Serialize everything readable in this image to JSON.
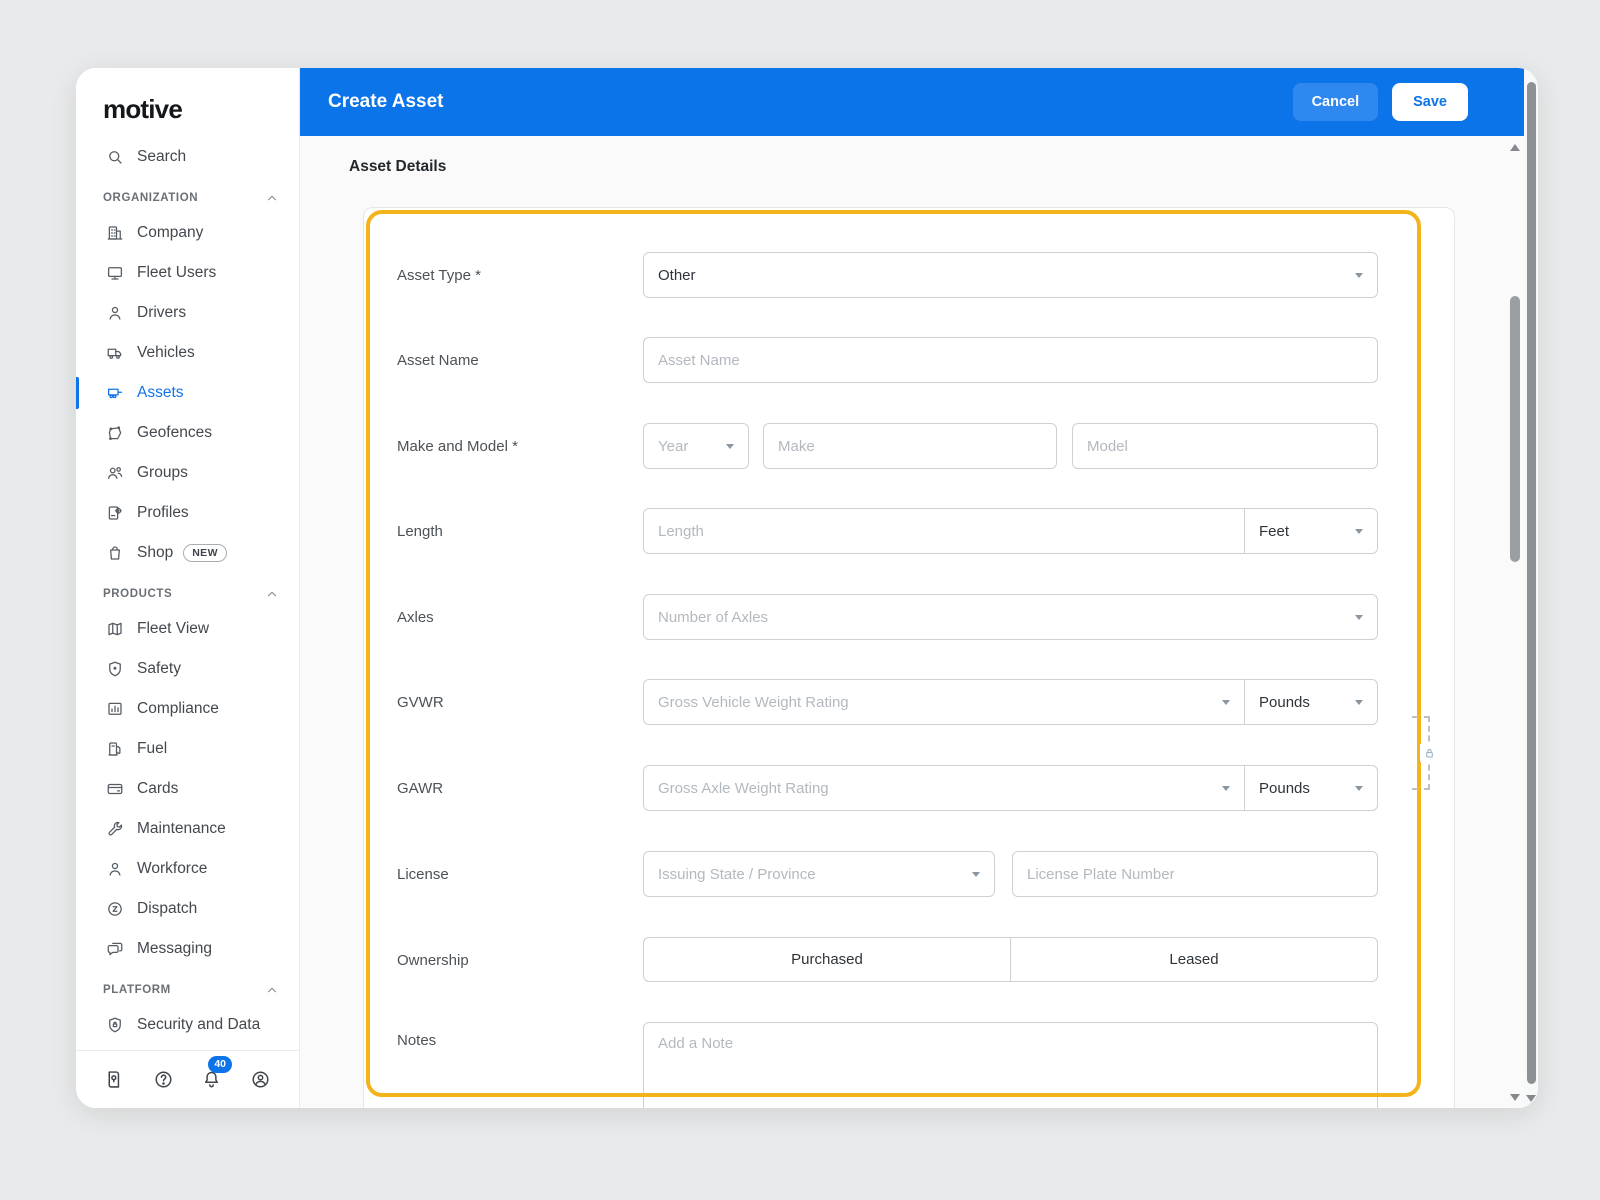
{
  "brand": {
    "logo_text": "motive"
  },
  "header": {
    "title": "Create Asset",
    "cancel_label": "Cancel",
    "save_label": "Save"
  },
  "sidebar": {
    "search_label": "Search",
    "sections": [
      {
        "label": "ORGANIZATION",
        "items": [
          {
            "label": "Company",
            "icon": "company"
          },
          {
            "label": "Fleet Users",
            "icon": "fleet-users"
          },
          {
            "label": "Drivers",
            "icon": "drivers"
          },
          {
            "label": "Vehicles",
            "icon": "vehicles"
          },
          {
            "label": "Assets",
            "icon": "assets",
            "selected": true
          },
          {
            "label": "Geofences",
            "icon": "geofences"
          },
          {
            "label": "Groups",
            "icon": "groups"
          },
          {
            "label": "Profiles",
            "icon": "profiles"
          },
          {
            "label": "Shop",
            "icon": "shop",
            "badge": "NEW"
          }
        ]
      },
      {
        "label": "PRODUCTS",
        "items": [
          {
            "label": "Fleet View",
            "icon": "fleet-view"
          },
          {
            "label": "Safety",
            "icon": "safety"
          },
          {
            "label": "Compliance",
            "icon": "compliance"
          },
          {
            "label": "Fuel",
            "icon": "fuel"
          },
          {
            "label": "Cards",
            "icon": "cards"
          },
          {
            "label": "Maintenance",
            "icon": "maintenance"
          },
          {
            "label": "Workforce",
            "icon": "workforce"
          },
          {
            "label": "Dispatch",
            "icon": "dispatch"
          },
          {
            "label": "Messaging",
            "icon": "messaging"
          }
        ]
      },
      {
        "label": "PLATFORM",
        "items": [
          {
            "label": "Security and Data",
            "icon": "security"
          }
        ]
      }
    ],
    "footer": {
      "notification_count": "40"
    }
  },
  "main": {
    "section_title": "Asset Details",
    "form": {
      "asset_type": {
        "label": "Asset Type *",
        "value": "Other"
      },
      "asset_name": {
        "label": "Asset Name",
        "placeholder": "Asset Name"
      },
      "make_model": {
        "label": "Make and Model *",
        "year_placeholder": "Year",
        "make_placeholder": "Make",
        "model_placeholder": "Model"
      },
      "length": {
        "label": "Length",
        "placeholder": "Length",
        "unit": "Feet"
      },
      "axles": {
        "label": "Axles",
        "placeholder": "Number of Axles"
      },
      "gvwr": {
        "label": "GVWR",
        "placeholder": "Gross Vehicle Weight Rating",
        "unit": "Pounds"
      },
      "gawr": {
        "label": "GAWR",
        "placeholder": "Gross Axle Weight Rating",
        "unit": "Pounds"
      },
      "license": {
        "label": "License",
        "state_placeholder": "Issuing State / Province",
        "plate_placeholder": "License Plate Number"
      },
      "ownership": {
        "label": "Ownership",
        "options": [
          "Purchased",
          "Leased"
        ]
      },
      "notes": {
        "label": "Notes",
        "placeholder": "Add a Note"
      }
    }
  },
  "colors": {
    "brand_blue": "#0b74e8",
    "cancel_blue": "#2f87f0",
    "highlight_yellow": "#f3b31a",
    "notification_badge_blue": "#0b74e8",
    "selected_item_blue": "#0f74e8"
  }
}
